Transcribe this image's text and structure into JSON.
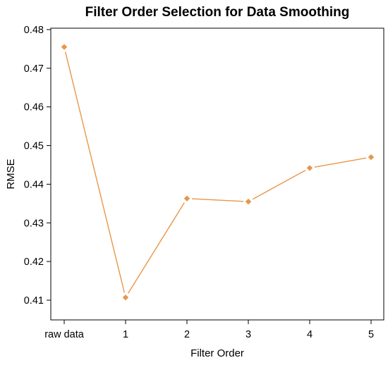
{
  "chart_data": {
    "type": "line",
    "title": "Filter Order Selection for Data Smoothing",
    "xlabel": "Filter Order",
    "ylabel": "RMSE",
    "categories": [
      "raw data",
      "1",
      "2",
      "3",
      "4",
      "5"
    ],
    "series": [
      {
        "values": [
          0.4755,
          0.4107,
          0.4363,
          0.4355,
          0.4442,
          0.447
        ],
        "color": "#e8964a"
      }
    ],
    "yticks": [
      0.41,
      0.42,
      0.43,
      0.44,
      0.45,
      0.46,
      0.47,
      0.48
    ],
    "ytick_labels": [
      "0.41",
      "0.42",
      "0.43",
      "0.44",
      "0.45",
      "0.46",
      "0.47",
      "0.48"
    ],
    "ylim": [
      0.4075,
      0.4815
    ],
    "grid": false,
    "frame": "box"
  }
}
